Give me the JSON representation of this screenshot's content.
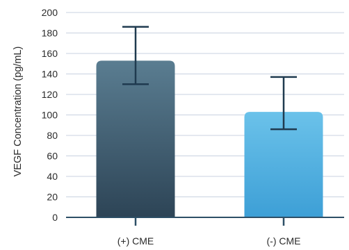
{
  "chart_data": {
    "type": "bar",
    "title": "",
    "xlabel": "",
    "ylabel": "VEGF Concentration (pg/mL)",
    "ylim": [
      0,
      200
    ],
    "yticks": [
      0,
      20,
      40,
      60,
      80,
      100,
      120,
      140,
      160,
      180,
      200
    ],
    "grid": true,
    "categories": [
      "(+) CME",
      "(-) CME"
    ],
    "values": [
      153,
      103
    ],
    "error_bars": [
      {
        "low": 130,
        "high": 186
      },
      {
        "low": 86,
        "high": 137
      }
    ],
    "colors": {
      "bar_0_top": "#5a7d91",
      "bar_0_bottom": "#2d4456",
      "bar_1_top": "#6bc2ea",
      "bar_1_bottom": "#3d9fd6",
      "error_bar": "#1f3a4f",
      "grid": "#c8d1e0",
      "axis": "#2d4f66"
    }
  }
}
